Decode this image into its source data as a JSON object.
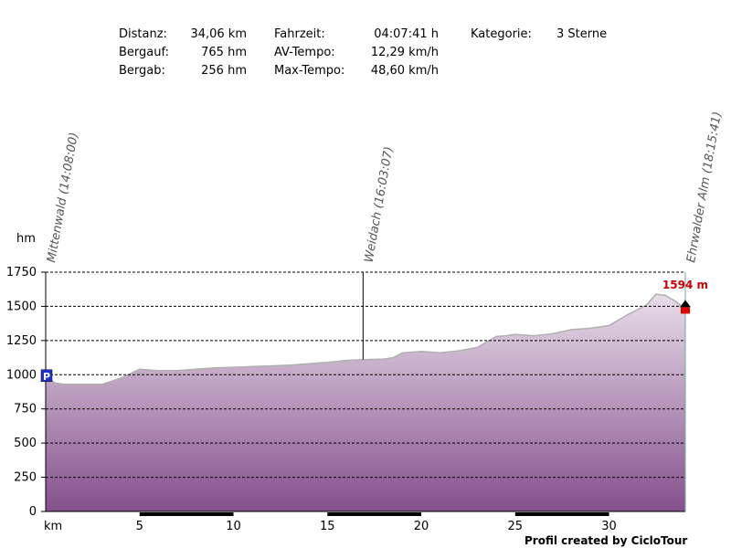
{
  "stats": {
    "distanz_label": "Distanz:",
    "distanz_value": "34,06 km",
    "bergauf_label": "Bergauf:",
    "bergauf_value": "765 hm",
    "bergab_label": "Bergab:",
    "bergab_value": "256 hm",
    "fahrzeit_label": "Fahrzeit:",
    "fahrzeit_value": "04:07:41 h",
    "avtempo_label": "AV-Tempo:",
    "avtempo_value": "12,29 km/h",
    "maxtempo_label": "Max-Tempo:",
    "maxtempo_value": "48,60 km/h",
    "kategorie_label": "Kategorie:",
    "kategorie_value": "3 Sterne"
  },
  "credit": "Profil created by CicloTour",
  "chart_data": {
    "type": "area",
    "xlabel": "km",
    "ylabel": "hm",
    "xlim": [
      0,
      34.06
    ],
    "ylim": [
      0,
      1750
    ],
    "x_ticks": [
      5,
      10,
      15,
      20,
      25,
      30
    ],
    "y_ticks": [
      0,
      250,
      500,
      750,
      1000,
      1250,
      1500,
      1750
    ],
    "grid": true,
    "colors": {
      "fill_top": "#e8dde9",
      "fill_bottom": "#85508c",
      "line": "#b0b0b0",
      "grid": "#000000",
      "max_label": "#cc0000"
    },
    "series": [
      {
        "x": [
          0,
          0.5,
          1,
          2,
          3,
          4,
          5,
          6,
          7,
          8,
          9,
          10,
          11,
          12,
          13,
          14,
          15,
          16,
          17,
          18,
          18.5,
          19,
          20,
          21,
          22,
          23,
          24,
          24.5,
          25,
          26,
          27,
          28,
          29,
          30,
          31,
          32,
          32.5,
          33,
          33.5,
          34.06
        ],
        "y": [
          990,
          940,
          930,
          930,
          930,
          975,
          1040,
          1030,
          1030,
          1040,
          1050,
          1055,
          1060,
          1065,
          1070,
          1080,
          1090,
          1105,
          1110,
          1115,
          1125,
          1160,
          1170,
          1160,
          1175,
          1200,
          1280,
          1285,
          1295,
          1285,
          1300,
          1330,
          1340,
          1360,
          1440,
          1510,
          1590,
          1580,
          1540,
          1480
        ]
      }
    ],
    "markers": [
      {
        "x": 0,
        "label": "Mittenwald (14:08:00)"
      },
      {
        "x": 16.9,
        "label": "Weidach (16:03:07)"
      },
      {
        "x": 34.06,
        "label": "Ehrwalder Alm (18:15:41)"
      }
    ],
    "start_icon": "P",
    "max_label": "1594 m",
    "icons": [
      "parking-icon",
      "summit-icon",
      "finish-flag-icon"
    ]
  }
}
